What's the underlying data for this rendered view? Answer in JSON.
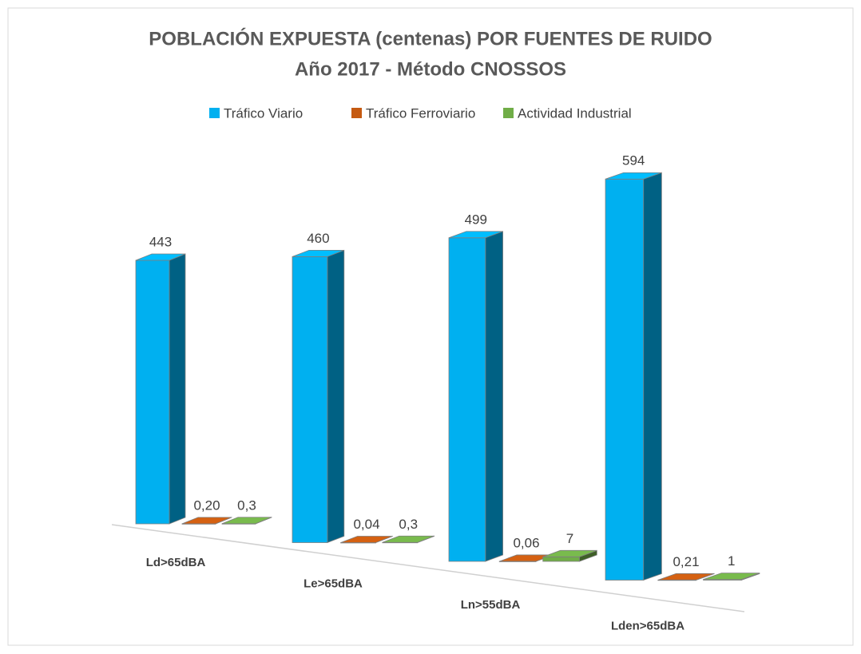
{
  "chart_data": {
    "type": "bar3d",
    "title": "POBLACIÓN EXPUESTA (centenas) POR FUENTES DE RUIDO",
    "subtitle": "Año 2017 - Método CNOSSOS",
    "categories": [
      "Ld>65dBA",
      "Le>65dBA",
      "Ln>55dBA",
      "Lden>65dBA"
    ],
    "series": [
      {
        "name": "Tráfico Viario",
        "color": "#00b0f0",
        "values": [
          443,
          460,
          499,
          594
        ]
      },
      {
        "name": "Tráfico Ferroviario",
        "color": "#c55a11",
        "values": [
          0.2,
          0.04,
          0.06,
          0.21
        ],
        "value_labels": [
          "0,20",
          "0,04",
          "0,06",
          "0,21"
        ]
      },
      {
        "name": "Actividad Industrial",
        "color": "#70ad47",
        "values": [
          0.3,
          0.3,
          7,
          1
        ],
        "value_labels": [
          "0,3",
          "0,3",
          "7",
          "1"
        ]
      }
    ],
    "legend": "top"
  }
}
